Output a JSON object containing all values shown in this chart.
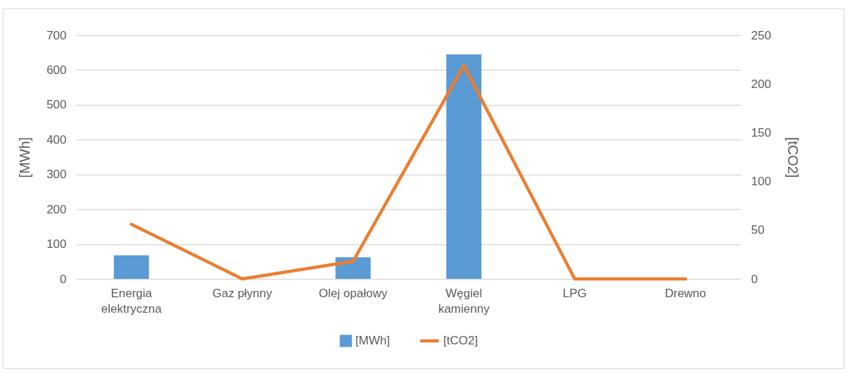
{
  "chart_data": {
    "type": "bar",
    "categories": [
      "Energia elektryczna",
      "Gaz płynny",
      "Olej opałowy",
      "Węgiel kamienny",
      "LPG",
      "Drewno"
    ],
    "series": [
      {
        "name": "[MWh]",
        "color": "#5b9bd5",
        "values": [
          68,
          0,
          62,
          645,
          0,
          0
        ]
      },
      {
        "name": "[tCO2]",
        "type": "line",
        "axis": "y2",
        "color": "#ed7d31",
        "values": [
          56,
          0,
          18,
          219,
          0,
          0
        ]
      }
    ],
    "ylabel": "[MWh]",
    "y2label": "[tCO2]",
    "ylim": [
      0,
      700
    ],
    "yticks": [
      0,
      100,
      200,
      300,
      400,
      500,
      600,
      700
    ],
    "y2lim": [
      0,
      250
    ],
    "y2ticks": [
      0,
      50,
      100,
      150,
      200,
      250
    ],
    "grid": true,
    "legend": "bottom"
  }
}
